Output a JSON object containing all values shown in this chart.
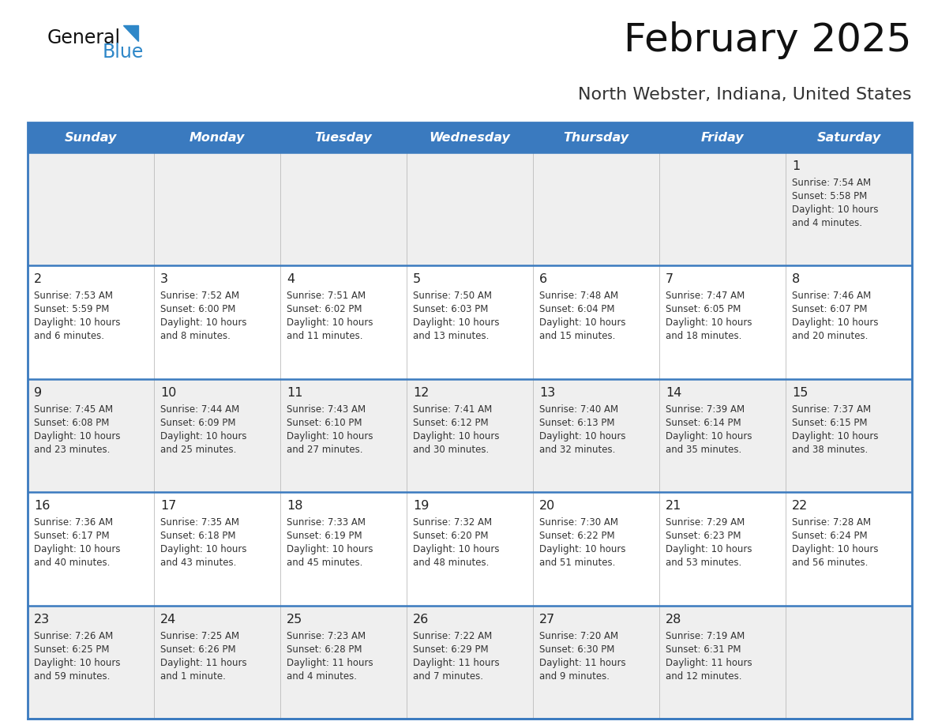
{
  "title": "February 2025",
  "subtitle": "North Webster, Indiana, United States",
  "header_bg": "#3a7abf",
  "header_text": "#ffffff",
  "day_names": [
    "Sunday",
    "Monday",
    "Tuesday",
    "Wednesday",
    "Thursday",
    "Friday",
    "Saturday"
  ],
  "row_bg_odd": "#efefef",
  "row_bg_even": "#ffffff",
  "border_color": "#3a7abf",
  "text_color": "#333333",
  "num_color": "#222222",
  "logo_general_color": "#111111",
  "logo_blue_color": "#2e87c8",
  "calendar_data": [
    [
      null,
      null,
      null,
      null,
      null,
      null,
      {
        "day": 1,
        "sunrise": "7:54 AM",
        "sunset": "5:58 PM",
        "daylight": "10 hours\nand 4 minutes."
      }
    ],
    [
      {
        "day": 2,
        "sunrise": "7:53 AM",
        "sunset": "5:59 PM",
        "daylight": "10 hours\nand 6 minutes."
      },
      {
        "day": 3,
        "sunrise": "7:52 AM",
        "sunset": "6:00 PM",
        "daylight": "10 hours\nand 8 minutes."
      },
      {
        "day": 4,
        "sunrise": "7:51 AM",
        "sunset": "6:02 PM",
        "daylight": "10 hours\nand 11 minutes."
      },
      {
        "day": 5,
        "sunrise": "7:50 AM",
        "sunset": "6:03 PM",
        "daylight": "10 hours\nand 13 minutes."
      },
      {
        "day": 6,
        "sunrise": "7:48 AM",
        "sunset": "6:04 PM",
        "daylight": "10 hours\nand 15 minutes."
      },
      {
        "day": 7,
        "sunrise": "7:47 AM",
        "sunset": "6:05 PM",
        "daylight": "10 hours\nand 18 minutes."
      },
      {
        "day": 8,
        "sunrise": "7:46 AM",
        "sunset": "6:07 PM",
        "daylight": "10 hours\nand 20 minutes."
      }
    ],
    [
      {
        "day": 9,
        "sunrise": "7:45 AM",
        "sunset": "6:08 PM",
        "daylight": "10 hours\nand 23 minutes."
      },
      {
        "day": 10,
        "sunrise": "7:44 AM",
        "sunset": "6:09 PM",
        "daylight": "10 hours\nand 25 minutes."
      },
      {
        "day": 11,
        "sunrise": "7:43 AM",
        "sunset": "6:10 PM",
        "daylight": "10 hours\nand 27 minutes."
      },
      {
        "day": 12,
        "sunrise": "7:41 AM",
        "sunset": "6:12 PM",
        "daylight": "10 hours\nand 30 minutes."
      },
      {
        "day": 13,
        "sunrise": "7:40 AM",
        "sunset": "6:13 PM",
        "daylight": "10 hours\nand 32 minutes."
      },
      {
        "day": 14,
        "sunrise": "7:39 AM",
        "sunset": "6:14 PM",
        "daylight": "10 hours\nand 35 minutes."
      },
      {
        "day": 15,
        "sunrise": "7:37 AM",
        "sunset": "6:15 PM",
        "daylight": "10 hours\nand 38 minutes."
      }
    ],
    [
      {
        "day": 16,
        "sunrise": "7:36 AM",
        "sunset": "6:17 PM",
        "daylight": "10 hours\nand 40 minutes."
      },
      {
        "day": 17,
        "sunrise": "7:35 AM",
        "sunset": "6:18 PM",
        "daylight": "10 hours\nand 43 minutes."
      },
      {
        "day": 18,
        "sunrise": "7:33 AM",
        "sunset": "6:19 PM",
        "daylight": "10 hours\nand 45 minutes."
      },
      {
        "day": 19,
        "sunrise": "7:32 AM",
        "sunset": "6:20 PM",
        "daylight": "10 hours\nand 48 minutes."
      },
      {
        "day": 20,
        "sunrise": "7:30 AM",
        "sunset": "6:22 PM",
        "daylight": "10 hours\nand 51 minutes."
      },
      {
        "day": 21,
        "sunrise": "7:29 AM",
        "sunset": "6:23 PM",
        "daylight": "10 hours\nand 53 minutes."
      },
      {
        "day": 22,
        "sunrise": "7:28 AM",
        "sunset": "6:24 PM",
        "daylight": "10 hours\nand 56 minutes."
      }
    ],
    [
      {
        "day": 23,
        "sunrise": "7:26 AM",
        "sunset": "6:25 PM",
        "daylight": "10 hours\nand 59 minutes."
      },
      {
        "day": 24,
        "sunrise": "7:25 AM",
        "sunset": "6:26 PM",
        "daylight": "11 hours\nand 1 minute."
      },
      {
        "day": 25,
        "sunrise": "7:23 AM",
        "sunset": "6:28 PM",
        "daylight": "11 hours\nand 4 minutes."
      },
      {
        "day": 26,
        "sunrise": "7:22 AM",
        "sunset": "6:29 PM",
        "daylight": "11 hours\nand 7 minutes."
      },
      {
        "day": 27,
        "sunrise": "7:20 AM",
        "sunset": "6:30 PM",
        "daylight": "11 hours\nand 9 minutes."
      },
      {
        "day": 28,
        "sunrise": "7:19 AM",
        "sunset": "6:31 PM",
        "daylight": "11 hours\nand 12 minutes."
      },
      null
    ]
  ]
}
